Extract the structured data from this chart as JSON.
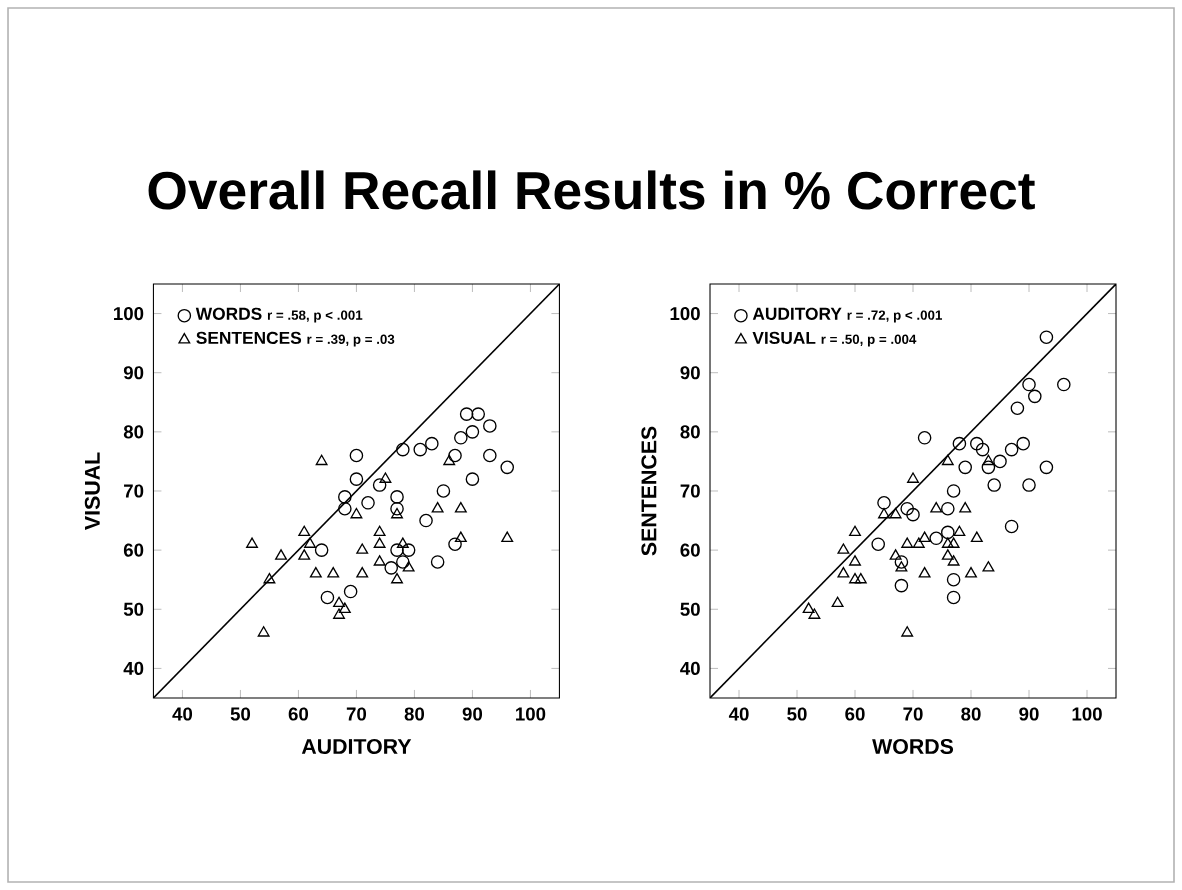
{
  "chart_data": [
    {
      "type": "scatter",
      "title": "Overall Recall Results in % Correct",
      "xlabel": "AUDITORY",
      "ylabel": "VISUAL",
      "xlim": [
        35,
        105
      ],
      "ylim": [
        35,
        105
      ],
      "xticks": [
        40,
        50,
        60,
        70,
        80,
        90,
        100
      ],
      "yticks": [
        40,
        50,
        60,
        70,
        80,
        90,
        100
      ],
      "legend": "top left",
      "annotations": [
        "r = .58, p < .001",
        "r = .39, p = .03"
      ],
      "series": [
        {
          "name": "WORDS",
          "color": "#000000",
          "marker": "circle",
          "x": [
            70,
            70,
            68,
            68,
            72,
            74,
            77,
            77,
            78,
            81,
            83,
            82,
            85,
            87,
            88,
            89,
            91,
            90,
            93,
            93,
            90,
            96,
            64,
            65,
            69,
            76,
            77,
            79,
            84,
            87,
            78
          ],
          "values": [
            76,
            72,
            69,
            67,
            68,
            71,
            69,
            67,
            77,
            77,
            78,
            65,
            70,
            76,
            79,
            83,
            83,
            80,
            81,
            76,
            72,
            74,
            60,
            52,
            53,
            57,
            60,
            60,
            58,
            61,
            58
          ]
        },
        {
          "name": "SENTENCES",
          "color": "#000000",
          "marker": "triangle",
          "x": [
            64,
            52,
            57,
            55,
            54,
            61,
            61,
            62,
            63,
            66,
            67,
            67,
            68,
            70,
            71,
            71,
            75,
            74,
            74,
            74,
            77,
            77,
            78,
            79,
            84,
            86,
            88,
            88,
            96
          ],
          "values": [
            75,
            61,
            59,
            55,
            46,
            63,
            59,
            61,
            56,
            56,
            51,
            49,
            50,
            66,
            60,
            56,
            72,
            63,
            61,
            58,
            66,
            55,
            61,
            57,
            67,
            75,
            67,
            62,
            62
          ]
        },
        {
          "type": "line",
          "color": "#000000",
          "x": [
            35,
            105
          ],
          "values": [
            35,
            105
          ]
        }
      ]
    },
    {
      "type": "scatter",
      "xlabel": "WORDS",
      "ylabel": "SENTENCES",
      "xlim": [
        35,
        105
      ],
      "ylim": [
        35,
        105
      ],
      "xticks": [
        40,
        50,
        60,
        70,
        80,
        90,
        100
      ],
      "yticks": [
        40,
        50,
        60,
        70,
        80,
        90,
        100
      ],
      "legend": "top left",
      "annotations": [
        "r = .72, p < .001",
        "r = .50, p = .004"
      ],
      "series": [
        {
          "name": "AUDITORY",
          "color": "#000000",
          "marker": "circle",
          "x": [
            93,
            90,
            91,
            88,
            72,
            78,
            81,
            82,
            87,
            89,
            85,
            79,
            83,
            93,
            84,
            90,
            77,
            65,
            69,
            70,
            76,
            87,
            64,
            74,
            76,
            77,
            77,
            68,
            68,
            96
          ],
          "values": [
            96,
            88,
            86,
            84,
            79,
            78,
            78,
            77,
            77,
            78,
            75,
            74,
            74,
            74,
            71,
            71,
            70,
            68,
            67,
            66,
            67,
            64,
            61,
            62,
            63,
            55,
            52,
            54,
            58,
            88
          ]
        },
        {
          "name": "VISUAL",
          "color": "#000000",
          "marker": "triangle",
          "x": [
            52,
            53,
            57,
            58,
            58,
            60,
            60,
            60,
            61,
            65,
            67,
            67,
            68,
            69,
            69,
            70,
            71,
            72,
            72,
            74,
            76,
            76,
            76,
            77,
            77,
            78,
            79,
            80,
            81,
            83,
            83
          ],
          "values": [
            50,
            49,
            51,
            60,
            56,
            63,
            58,
            55,
            55,
            66,
            66,
            59,
            57,
            61,
            46,
            72,
            61,
            62,
            56,
            67,
            75,
            61,
            59,
            58,
            61,
            63,
            67,
            56,
            62,
            57,
            75
          ]
        },
        {
          "type": "line",
          "color": "#000000",
          "x": [
            35,
            105
          ],
          "values": [
            35,
            105
          ]
        }
      ]
    }
  ]
}
